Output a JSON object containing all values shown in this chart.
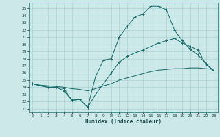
{
  "title": "",
  "xlabel": "Humidex (Indice chaleur)",
  "bg_color": "#cce8e8",
  "line_color": "#1a6b6b",
  "grid_color": "#aad0d0",
  "xlim": [
    -0.5,
    23.5
  ],
  "ylim": [
    20.5,
    35.8
  ],
  "xticks": [
    0,
    1,
    2,
    3,
    4,
    5,
    6,
    7,
    8,
    9,
    10,
    11,
    12,
    13,
    14,
    15,
    16,
    17,
    18,
    19,
    20,
    21,
    22,
    23
  ],
  "yticks": [
    21,
    22,
    23,
    24,
    25,
    26,
    27,
    28,
    29,
    30,
    31,
    32,
    33,
    34,
    35
  ],
  "series1_x": [
    0,
    1,
    2,
    3,
    4,
    5,
    6,
    7,
    8,
    9,
    10,
    11,
    12,
    13,
    14,
    15,
    16,
    17,
    18,
    19,
    20,
    21,
    22,
    23
  ],
  "series1_y": [
    24.5,
    24.2,
    24.0,
    24.0,
    23.8,
    22.2,
    22.3,
    21.2,
    25.5,
    27.8,
    28.0,
    31.0,
    32.5,
    33.8,
    34.2,
    35.3,
    35.3,
    34.8,
    32.0,
    30.5,
    29.3,
    28.5,
    27.3,
    26.3
  ],
  "series2_x": [
    0,
    1,
    2,
    3,
    4,
    5,
    6,
    7,
    8,
    9,
    10,
    11,
    12,
    13,
    14,
    15,
    16,
    17,
    18,
    19,
    20,
    21,
    22,
    23
  ],
  "series2_y": [
    24.5,
    24.2,
    24.0,
    24.0,
    23.5,
    22.2,
    22.3,
    21.2,
    23.0,
    24.5,
    26.0,
    27.5,
    28.3,
    28.8,
    29.2,
    29.7,
    30.2,
    30.5,
    30.8,
    30.2,
    29.7,
    29.2,
    27.2,
    26.3
  ],
  "series3_x": [
    0,
    1,
    2,
    3,
    4,
    5,
    6,
    7,
    8,
    9,
    10,
    11,
    12,
    13,
    14,
    15,
    16,
    17,
    18,
    19,
    20,
    21,
    22,
    23
  ],
  "series3_y": [
    24.5,
    24.3,
    24.2,
    24.1,
    24.0,
    23.8,
    23.7,
    23.5,
    23.8,
    24.2,
    24.5,
    25.0,
    25.3,
    25.6,
    25.9,
    26.2,
    26.4,
    26.5,
    26.6,
    26.6,
    26.7,
    26.7,
    26.6,
    26.5
  ]
}
